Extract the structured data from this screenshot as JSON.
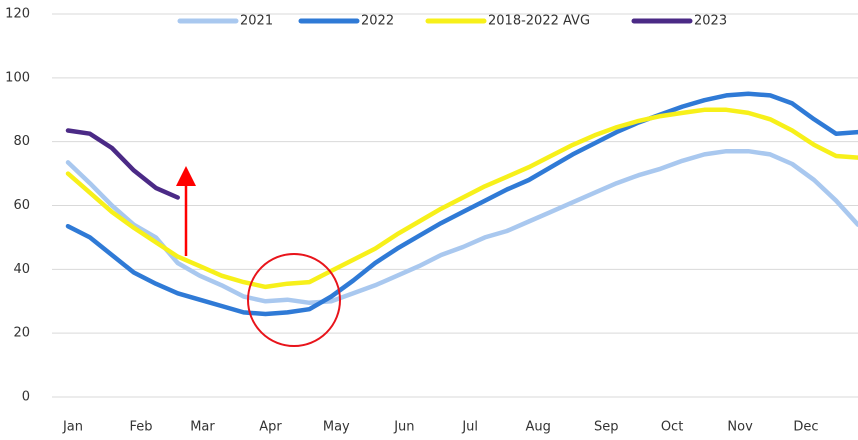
{
  "chart_data": {
    "type": "line",
    "x": [
      0,
      10,
      20,
      30,
      40,
      50,
      60,
      70,
      80,
      90,
      100,
      110,
      120,
      130,
      140,
      150,
      160,
      170,
      180,
      190,
      200,
      210,
      220,
      230,
      240,
      250,
      260,
      270,
      280,
      290,
      300,
      310,
      320,
      330,
      340,
      350,
      360
    ],
    "xlim": [
      0,
      360
    ],
    "xticks": [
      {
        "value": 0,
        "label": "Jan"
      },
      {
        "value": 31,
        "label": "Feb"
      },
      {
        "value": 59,
        "label": "Mar"
      },
      {
        "value": 90,
        "label": "Apr"
      },
      {
        "value": 120,
        "label": "May"
      },
      {
        "value": 151,
        "label": "Jun"
      },
      {
        "value": 181,
        "label": "Jul"
      },
      {
        "value": 212,
        "label": "Aug"
      },
      {
        "value": 243,
        "label": "Sep"
      },
      {
        "value": 273,
        "label": "Oct"
      },
      {
        "value": 304,
        "label": "Nov"
      },
      {
        "value": 334,
        "label": "Dec"
      }
    ],
    "ylim": [
      0,
      120
    ],
    "yticks": [
      0,
      20,
      40,
      60,
      80,
      100,
      120
    ],
    "grid": true,
    "legend": "top",
    "series": [
      {
        "name": "2021",
        "color": "#a9c8ef",
        "values": [
          73.5,
          67,
          60,
          54,
          50,
          42,
          38,
          35,
          31.5,
          30,
          30.5,
          29.5,
          30,
          32.5,
          35,
          38,
          41,
          44.5,
          47,
          50,
          52,
          55,
          58,
          61,
          64,
          67,
          69.5,
          71.5,
          74,
          76,
          77,
          77,
          76,
          73,
          68,
          61.5,
          54
        ]
      },
      {
        "name": "2022",
        "color": "#2f7ad6",
        "values": [
          53.5,
          50,
          44.5,
          39,
          35.5,
          32.5,
          30.5,
          28.5,
          26.5,
          26,
          26.5,
          27.5,
          31.5,
          36.5,
          42,
          46.5,
          50.5,
          54.5,
          58,
          61.5,
          65,
          68,
          72,
          76,
          79.5,
          83,
          86,
          88.5,
          91,
          93,
          94.5,
          95,
          94.5,
          92,
          87,
          82.5,
          83
        ]
      },
      {
        "name": "2018-2022 AVG",
        "color": "#f7f01a",
        "values": [
          70,
          64,
          58,
          53,
          48.5,
          44,
          41,
          38,
          36,
          34.5,
          35.5,
          36,
          39.5,
          43,
          46.5,
          51,
          55,
          59,
          62.5,
          66,
          69,
          72,
          75.5,
          79,
          82,
          84.5,
          86.5,
          88,
          89,
          90,
          90,
          89,
          87,
          83.5,
          79,
          75.5,
          75
        ]
      },
      {
        "name": "2023",
        "color": "#4b2a86",
        "values": [
          83.5,
          82.5,
          78,
          71,
          65.5,
          62.5,
          null,
          null,
          null,
          null,
          null,
          null,
          null,
          null,
          null,
          null,
          null,
          null,
          null,
          null,
          null,
          null,
          null,
          null,
          null,
          null,
          null,
          null,
          null,
          null,
          null,
          null,
          null,
          null,
          null,
          null,
          null
        ]
      }
    ]
  }
}
